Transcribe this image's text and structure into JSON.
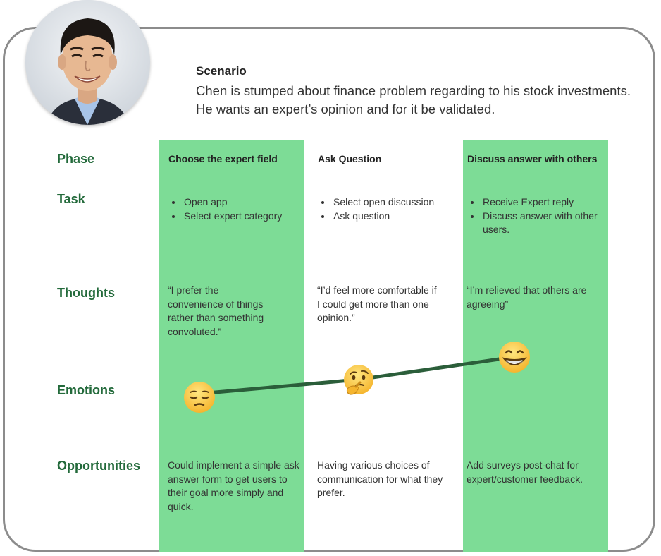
{
  "scenario": {
    "title": "Scenario",
    "lines": [
      "Chen is stumped about finance problem regarding to his stock investments.",
      "He wants an expert’s opinion and for it be validated."
    ]
  },
  "rows": {
    "phase": "Phase",
    "task": "Task",
    "thoughts": "Thoughts",
    "emotions": "Emotions",
    "opportunities": "Opportunities"
  },
  "stages": [
    {
      "phase": "Choose the expert field",
      "tasks": [
        "Open app",
        "Select expert category"
      ],
      "thought_lines": [
        "“I prefer the",
        "convenience of things",
        "rather than something",
        "convoluted.”"
      ],
      "emotion": "pensive-face",
      "opportunity_lines": [
        "Could implement a simple ask",
        "answer form to get users to",
        "their goal more simply and",
        "quick."
      ]
    },
    {
      "phase": "Ask Question",
      "tasks": [
        "Select open discussion",
        "Ask question"
      ],
      "thought_lines": [
        "“I’d feel more comfortable if",
        "I could get more than one",
        "opinion.”"
      ],
      "emotion": "thinking-face",
      "opportunity_lines": [
        "Having various choices of",
        "communication for what they",
        "prefer."
      ]
    },
    {
      "phase": "Discuss answer with others",
      "tasks": [
        "Receive Expert reply",
        "Discuss answer with other users."
      ],
      "thought_lines": [
        "“I’m relieved that others are",
        "agreeing”"
      ],
      "emotion": "grinning-face",
      "opportunity_lines": [
        "Add surveys post-chat for",
        "expert/customer feedback."
      ]
    }
  ],
  "colors": {
    "accent_green": "#7ddc96",
    "label_green": "#236a3b",
    "emotion_line": "#2b5e3a",
    "card_border": "#8c8c8c"
  }
}
